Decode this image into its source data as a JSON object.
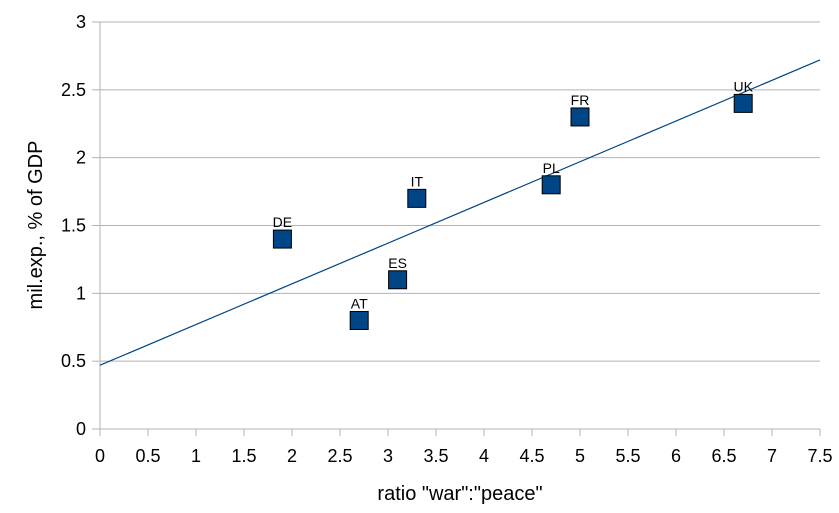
{
  "chart_data": {
    "type": "scatter",
    "title": "",
    "xlabel": "ratio \"war\":\"peace\"",
    "ylabel": "mil.exp., % of GDP",
    "xlim": [
      0,
      7.5
    ],
    "ylim": [
      0,
      3
    ],
    "x_ticks": [
      "0",
      "0.5",
      "1",
      "1.5",
      "2",
      "2.5",
      "3",
      "3.5",
      "4",
      "4.5",
      "5",
      "5.5",
      "6",
      "6.5",
      "7",
      "7.5"
    ],
    "y_ticks": [
      "0",
      "0.5",
      "1",
      "1.5",
      "2",
      "2.5",
      "3"
    ],
    "grid": "horizontal",
    "marker_color": "#004586",
    "trendline_color": "#004586",
    "points": [
      {
        "label": "DE",
        "x": 1.9,
        "y": 1.4
      },
      {
        "label": "AT",
        "x": 2.7,
        "y": 0.8
      },
      {
        "label": "ES",
        "x": 3.1,
        "y": 1.1
      },
      {
        "label": "IT",
        "x": 3.3,
        "y": 1.7
      },
      {
        "label": "PL",
        "x": 4.7,
        "y": 1.8
      },
      {
        "label": "FR",
        "x": 5.0,
        "y": 2.3
      },
      {
        "label": "UK",
        "x": 6.7,
        "y": 2.4
      }
    ],
    "trendline": {
      "type": "linear",
      "y_at_x0": 0.47,
      "y_at_x7_5": 2.72
    }
  }
}
